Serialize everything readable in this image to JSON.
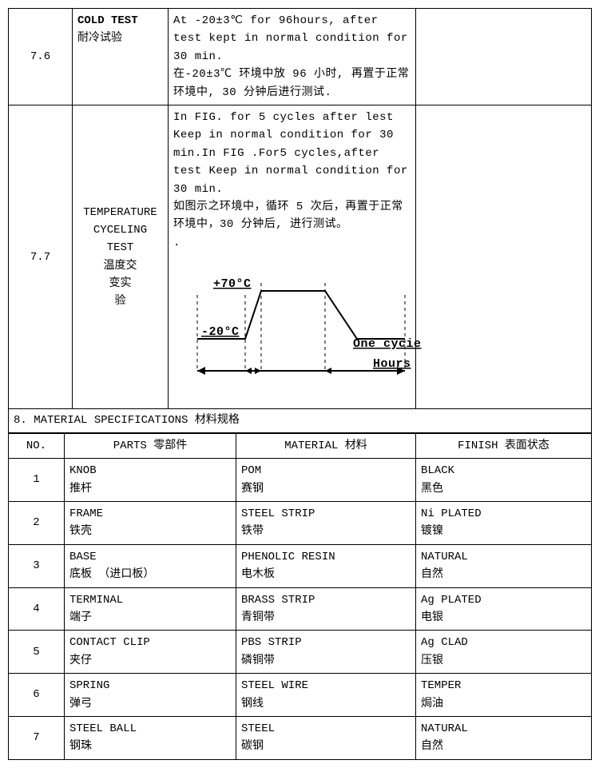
{
  "tests": [
    {
      "num": "7.6",
      "name_en": "COLD TEST",
      "name_cn": "耐冷试验",
      "desc_en": "At -20±3℃ for 96hours, after test kept in normal condition for 30 min.",
      "desc_cn": "在-20±3℃ 环境中放 96 小时, 再置于正常环境中, 30 分钟后进行测试."
    },
    {
      "num": "7.7",
      "name_en": "TEMPERATURE CYCELING TEST",
      "name_cn": "温度交变实验",
      "desc_en": "In FIG. for 5 cycles after lest Keep in normal condition for 30 min.In FIG .For5 cycles,after test Keep in normal condition for 30 min.",
      "desc_cn": "如图示之环境中，循环 5 次后，再置于正常环境中，30 分钟后, 进行测试。",
      "diagram": {
        "high_label": "+70°C",
        "low_label": "-20°C",
        "cycle_label": "One cycie",
        "axis_label": "Hours",
        "stroke": "#000"
      }
    }
  ],
  "section8": {
    "header": "8. MATERIAL SPECIFICATIONS 材料规格",
    "columns": {
      "no": "NO.",
      "parts": "PARTS 零部件",
      "material": "MATERIAL 材料",
      "finish": "FINISH 表面状态"
    },
    "rows": [
      {
        "no": "1",
        "part_en": "KNOB",
        "part_cn": "推杆",
        "mat_en": "POM",
        "mat_cn": "赛钢",
        "fin_en": "BLACK",
        "fin_cn": "黑色"
      },
      {
        "no": "2",
        "part_en": "FRAME",
        "part_cn": "铁壳",
        "mat_en": "STEEL STRIP",
        "mat_cn": "铁带",
        "fin_en": "Ni PLATED",
        "fin_cn": "镀镍"
      },
      {
        "no": "3",
        "part_en": "BASE",
        "part_cn": "底板 （进口板）",
        "mat_en": "PHENOLIC RESIN",
        "mat_cn": "电木板",
        "fin_en": "NATURAL",
        "fin_cn": "自然"
      },
      {
        "no": "4",
        "part_en": "TERMINAL",
        "part_cn": "端子",
        "mat_en": "BRASS STRIP",
        "mat_cn": "青铜带",
        "fin_en": "Ag PLATED",
        "fin_cn": "电银"
      },
      {
        "no": "5",
        "part_en": "CONTACT CLIP",
        "part_cn": "夹仔",
        "mat_en": "PBS STRIP",
        "mat_cn": "磷铜带",
        "fin_en": "Ag CLAD",
        "fin_cn": "压银"
      },
      {
        "no": "6",
        "part_en": "SPRING",
        "part_cn": "弹弓",
        "mat_en": "STEEL WIRE",
        "mat_cn": "钢线",
        "fin_en": "TEMPER",
        "fin_cn": "焗油"
      },
      {
        "no": "7",
        "part_en": "STEEL BALL",
        "part_cn": "钢珠",
        "mat_en": "STEEL",
        "mat_cn": "碳钢",
        "fin_en": "NATURAL",
        "fin_cn": "自然"
      }
    ]
  }
}
